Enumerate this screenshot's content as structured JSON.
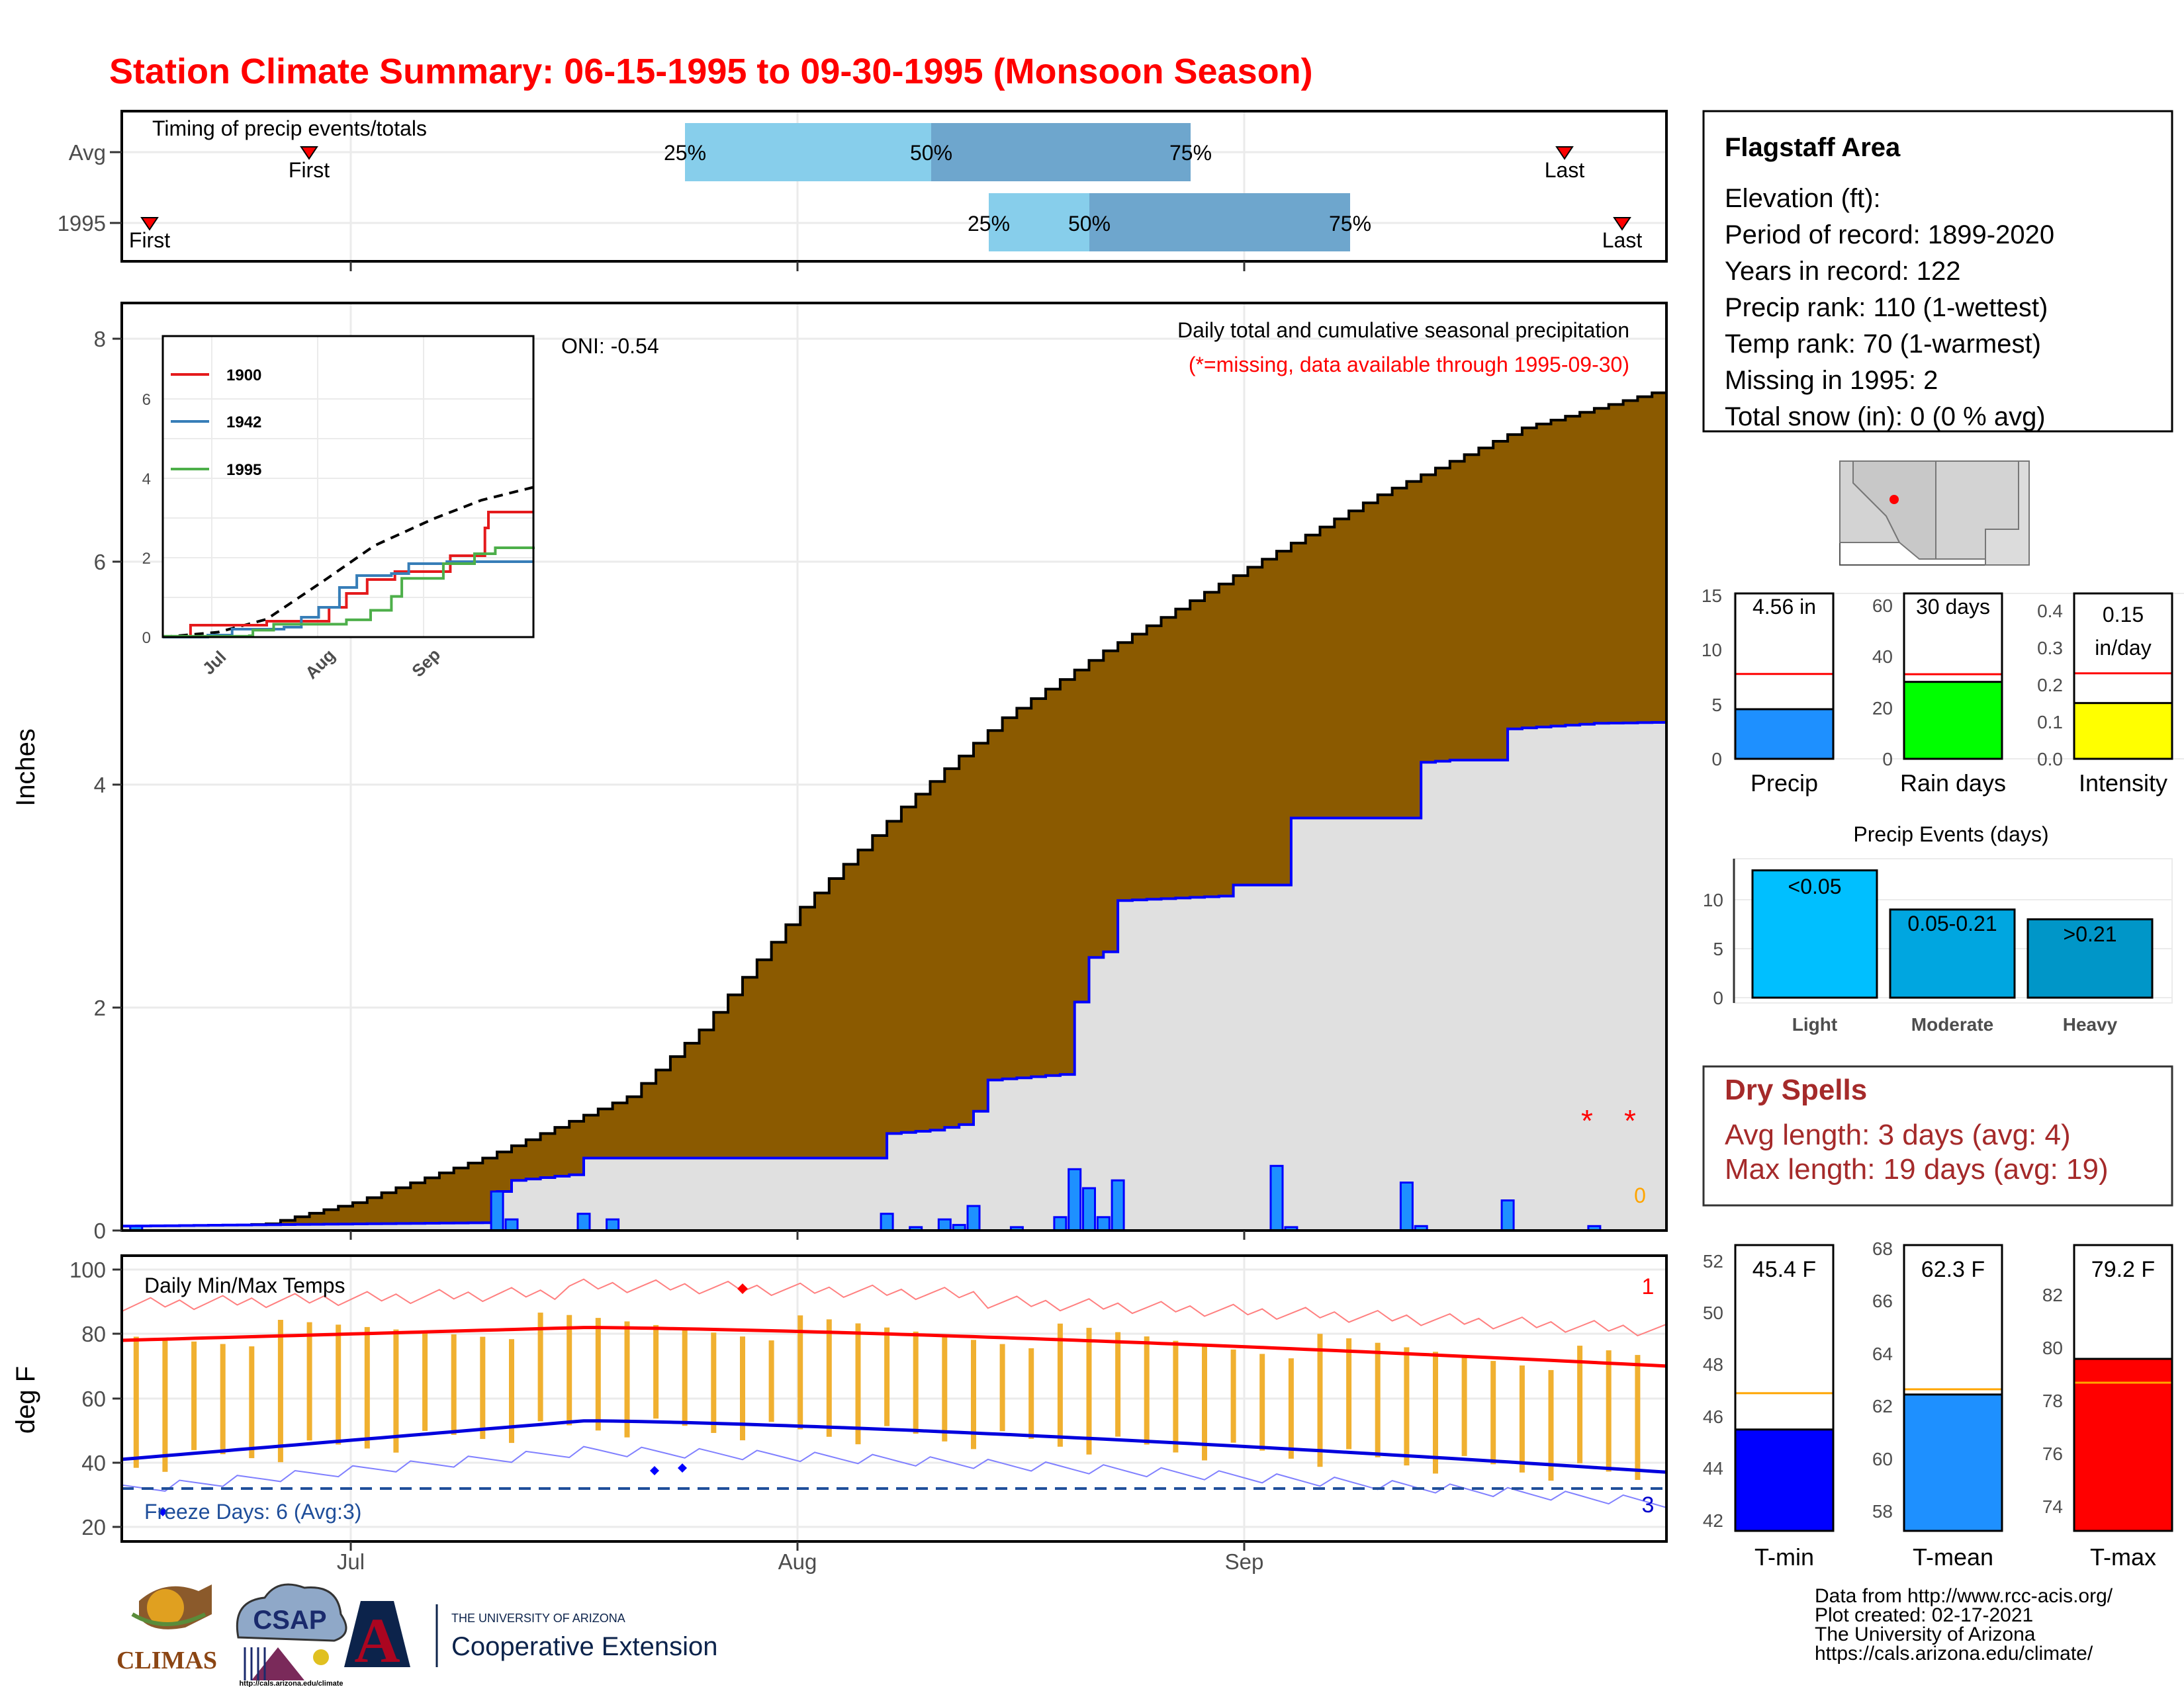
{
  "title": "Station Climate Summary: 06-15-1995 to 09-30-1995 (Monsoon Season)",
  "timing": {
    "title": "Timing of precip events/totals",
    "rows": [
      "Avg",
      "1995"
    ],
    "pct_labels": [
      "25%",
      "50%",
      "75%"
    ],
    "first_label": "First",
    "last_label": "Last"
  },
  "station": {
    "name": "Flagstaff Area",
    "lines": [
      "Elevation (ft):",
      "Period of record: 1899-2020",
      "Years in record: 122",
      "Precip rank: 110 (1-wettest)",
      "Temp rank: 70 (1-warmest)",
      "Missing in 1995: 2",
      "Total snow (in): 0 (0 % avg)"
    ]
  },
  "main_precip": {
    "title": "Daily total and cumulative seasonal precipitation",
    "subtitle": "(*=missing, data available through 1995-09-30)",
    "ylabel": "Inches",
    "oni": "ONI: -0.54",
    "yticks": [
      "0",
      "2",
      "4",
      "6",
      "8"
    ],
    "xticks": [
      "Jul",
      "Aug",
      "Sep"
    ],
    "zero_label": "0",
    "missing_mark": "*"
  },
  "inset": {
    "legend": [
      "1900",
      "1942",
      "1995"
    ],
    "yticks": [
      "0",
      "2",
      "4",
      "6"
    ],
    "xticks": [
      "Jul",
      "Aug",
      "Sep"
    ]
  },
  "temps": {
    "title": "Daily Min/Max Temps",
    "ylabel": "deg F",
    "yticks": [
      "20",
      "40",
      "60",
      "80",
      "100"
    ],
    "xticks": [
      "Jul",
      "Aug",
      "Sep"
    ],
    "freeze_label": "Freeze Days: 6 (Avg:3)",
    "max_count": "1",
    "min_count": "3"
  },
  "mini_precip": {
    "labels": [
      "Precip",
      "Rain days",
      "Intensity"
    ],
    "values_text": [
      "4.56 in",
      "30 days",
      "0.15",
      "in/day"
    ],
    "axis1": [
      "0",
      "5",
      "10",
      "15"
    ],
    "axis2": [
      "0",
      "20",
      "40",
      "60"
    ],
    "axis3": [
      "0.0",
      "0.1",
      "0.2",
      "0.3",
      "0.4"
    ]
  },
  "events": {
    "title": "Precip Events (days)",
    "cats": [
      "Light",
      "Moderate",
      "Heavy"
    ],
    "bar_labels": [
      "<0.05",
      "0.05-0.21",
      ">0.21"
    ],
    "yticks": [
      "0",
      "5",
      "10"
    ]
  },
  "dry": {
    "title": "Dry Spells",
    "avg": "Avg length: 3 days (avg: 4)",
    "max": "Max length: 19 days (avg: 19)"
  },
  "temp_bars": {
    "labels": [
      "T-min",
      "T-mean",
      "T-max"
    ],
    "values_text": [
      "45.4 F",
      "62.3 F",
      "79.2 F"
    ],
    "axis1": [
      "42",
      "44",
      "46",
      "48",
      "50",
      "52"
    ],
    "axis2": [
      "58",
      "60",
      "62",
      "64",
      "66",
      "68"
    ],
    "axis3": [
      "74",
      "76",
      "78",
      "80",
      "82"
    ]
  },
  "logos": {
    "climas": "CLIMAS",
    "csap": "CSAP",
    "csap_url": "http://cals.arizona.edu/climate",
    "ua_small": "THE UNIVERSITY OF ARIZONA",
    "ua_big": "Cooperative Extension",
    "ua_letter": "A"
  },
  "footer": [
    "Data from http://www.rcc-acis.org/",
    "Plot created: 02-17-2021",
    "The University of Arizona",
    "https://cals.arizona.edu/climate/"
  ],
  "colors": {
    "cum_avg_fill": "#8b5a00",
    "cum_obs_fill": "#e0e0e0",
    "cum_obs_line": "#0000ff",
    "daily_bar": "#1e90ff",
    "temp_bar": "#f0b030",
    "tmax_avg": "#ff0000",
    "tmin_avg": "#0000dd",
    "light": "#00bfff",
    "moderate": "#00a6e0",
    "heavy": "#0096c8"
  },
  "chart_data": [
    {
      "type": "timing",
      "rows": [
        {
          "name": "Avg",
          "first": "06-24",
          "q25": "07-20",
          "q50": "08-03",
          "q75": "08-17",
          "last": "09-21"
        },
        {
          "name": "1995",
          "first": "06-16",
          "q25": "08-06",
          "q50": "08-12",
          "q75": "08-27",
          "last": "09-29"
        }
      ]
    },
    {
      "type": "area",
      "title": "Daily total and cumulative seasonal precipitation",
      "ylabel": "Inches",
      "ylim": [
        0,
        8.3
      ],
      "x_range": [
        "06-15",
        "09-30"
      ],
      "avg_cumulative": [
        {
          "date": "06-15",
          "value": 0.0
        },
        {
          "date": "06-25",
          "value": 0.06
        },
        {
          "date": "07-01",
          "value": 0.25
        },
        {
          "date": "07-10",
          "value": 0.65
        },
        {
          "date": "07-20",
          "value": 1.2
        },
        {
          "date": "07-25",
          "value": 1.8
        },
        {
          "date": "08-01",
          "value": 2.9
        },
        {
          "date": "08-08",
          "value": 3.8
        },
        {
          "date": "08-15",
          "value": 4.6
        },
        {
          "date": "08-22",
          "value": 5.2
        },
        {
          "date": "09-01",
          "value": 5.95
        },
        {
          "date": "09-10",
          "value": 6.6
        },
        {
          "date": "09-20",
          "value": 7.2
        },
        {
          "date": "09-30",
          "value": 7.55
        }
      ],
      "obs_cumulative": [
        {
          "date": "06-15",
          "value": 0.04
        },
        {
          "date": "07-10",
          "value": 0.07
        },
        {
          "date": "07-11",
          "value": 0.35
        },
        {
          "date": "07-12",
          "value": 0.45
        },
        {
          "date": "07-16",
          "value": 0.5
        },
        {
          "date": "07-17",
          "value": 0.65
        },
        {
          "date": "08-06",
          "value": 0.65
        },
        {
          "date": "08-07",
          "value": 0.87
        },
        {
          "date": "08-10",
          "value": 0.9
        },
        {
          "date": "08-12",
          "value": 0.95
        },
        {
          "date": "08-13",
          "value": 1.07
        },
        {
          "date": "08-14",
          "value": 1.35
        },
        {
          "date": "08-19",
          "value": 1.4
        },
        {
          "date": "08-20",
          "value": 2.05
        },
        {
          "date": "08-21",
          "value": 2.45
        },
        {
          "date": "08-22",
          "value": 2.5
        },
        {
          "date": "08-23",
          "value": 2.96
        },
        {
          "date": "08-30",
          "value": 3.0
        },
        {
          "date": "08-31",
          "value": 3.1
        },
        {
          "date": "09-03",
          "value": 3.1
        },
        {
          "date": "09-04",
          "value": 3.7
        },
        {
          "date": "09-12",
          "value": 3.7
        },
        {
          "date": "09-13",
          "value": 4.2
        },
        {
          "date": "09-15",
          "value": 4.22
        },
        {
          "date": "09-18",
          "value": 4.22
        },
        {
          "date": "09-19",
          "value": 4.5
        },
        {
          "date": "09-25",
          "value": 4.55
        },
        {
          "date": "09-30",
          "value": 4.56
        }
      ],
      "daily_bars": [
        {
          "date": "06-16",
          "value": 0.04
        },
        {
          "date": "07-11",
          "value": 0.35
        },
        {
          "date": "07-12",
          "value": 0.1
        },
        {
          "date": "07-17",
          "value": 0.15
        },
        {
          "date": "07-19",
          "value": 0.1
        },
        {
          "date": "08-07",
          "value": 0.15
        },
        {
          "date": "08-09",
          "value": 0.03
        },
        {
          "date": "08-11",
          "value": 0.1
        },
        {
          "date": "08-12",
          "value": 0.05
        },
        {
          "date": "08-13",
          "value": 0.22
        },
        {
          "date": "08-16",
          "value": 0.03
        },
        {
          "date": "08-19",
          "value": 0.12
        },
        {
          "date": "08-20",
          "value": 0.55
        },
        {
          "date": "08-21",
          "value": 0.38
        },
        {
          "date": "08-22",
          "value": 0.12
        },
        {
          "date": "08-23",
          "value": 0.45
        },
        {
          "date": "09-03",
          "value": 0.58
        },
        {
          "date": "09-04",
          "value": 0.03
        },
        {
          "date": "09-12",
          "value": 0.43
        },
        {
          "date": "09-13",
          "value": 0.04
        },
        {
          "date": "09-19",
          "value": 0.27
        },
        {
          "date": "09-25",
          "value": 0.04
        }
      ],
      "missing": [
        "09-21",
        "09-26"
      ]
    },
    {
      "type": "line",
      "title": "inset",
      "ylim": [
        0,
        8
      ],
      "series": [
        {
          "name": "1900",
          "points": [
            {
              "date": "06-15",
              "value": 0
            },
            {
              "date": "06-22",
              "value": 0
            },
            {
              "date": "06-23",
              "value": 0.6
            },
            {
              "date": "07-10",
              "value": 0.6
            },
            {
              "date": "07-15",
              "value": 0.8
            },
            {
              "date": "08-01",
              "value": 0.8
            },
            {
              "date": "08-02",
              "value": 1.5
            },
            {
              "date": "08-06",
              "value": 1.5
            },
            {
              "date": "08-07",
              "value": 2.2
            },
            {
              "date": "08-12",
              "value": 2.2
            },
            {
              "date": "08-13",
              "value": 2.9
            },
            {
              "date": "08-20",
              "value": 2.9
            },
            {
              "date": "08-21",
              "value": 3.3
            },
            {
              "date": "09-05",
              "value": 3.3
            },
            {
              "date": "09-06",
              "value": 4.1
            },
            {
              "date": "09-14",
              "value": 4.1
            },
            {
              "date": "09-16",
              "value": 5.5
            },
            {
              "date": "09-17",
              "value": 6.3
            },
            {
              "date": "09-30",
              "value": 6.3
            }
          ]
        },
        {
          "name": "1942",
          "points": [
            {
              "date": "06-15",
              "value": 0
            },
            {
              "date": "06-28",
              "value": 0.1
            },
            {
              "date": "07-05",
              "value": 0.4
            },
            {
              "date": "07-20",
              "value": 0.5
            },
            {
              "date": "07-25",
              "value": 1.0
            },
            {
              "date": "07-30",
              "value": 1.5
            },
            {
              "date": "08-05",
              "value": 2.5
            },
            {
              "date": "08-10",
              "value": 3.1
            },
            {
              "date": "08-20",
              "value": 3.2
            },
            {
              "date": "08-25",
              "value": 3.7
            },
            {
              "date": "09-05",
              "value": 3.8
            },
            {
              "date": "09-30",
              "value": 3.8
            }
          ]
        },
        {
          "name": "1995",
          "points": [
            {
              "date": "06-15",
              "value": 0.04
            },
            {
              "date": "07-10",
              "value": 0.07
            },
            {
              "date": "07-11",
              "value": 0.35
            },
            {
              "date": "07-17",
              "value": 0.65
            },
            {
              "date": "08-06",
              "value": 0.65
            },
            {
              "date": "08-07",
              "value": 0.87
            },
            {
              "date": "08-14",
              "value": 1.35
            },
            {
              "date": "08-20",
              "value": 2.05
            },
            {
              "date": "08-23",
              "value": 2.96
            },
            {
              "date": "09-04",
              "value": 3.7
            },
            {
              "date": "09-13",
              "value": 4.2
            },
            {
              "date": "09-19",
              "value": 4.5
            },
            {
              "date": "09-30",
              "value": 4.56
            }
          ]
        },
        {
          "name": "avg",
          "points": [
            {
              "date": "06-15",
              "value": 0
            },
            {
              "date": "07-01",
              "value": 0.25
            },
            {
              "date": "07-15",
              "value": 0.9
            },
            {
              "date": "08-01",
              "value": 2.9
            },
            {
              "date": "08-15",
              "value": 4.6
            },
            {
              "date": "09-01",
              "value": 5.95
            },
            {
              "date": "09-15",
              "value": 6.9
            },
            {
              "date": "09-30",
              "value": 7.55
            }
          ]
        }
      ]
    },
    {
      "type": "bar",
      "title": "Daily Min/Max Temps",
      "ylabel": "deg F",
      "ylim": [
        17,
        101
      ],
      "tmax_avg_start": 78,
      "tmax_avg_peak": 82,
      "tmax_avg_end": 70,
      "tmin_avg_start": 41,
      "tmin_avg_peak": 53,
      "tmin_avg_end": 37,
      "record_high_marker": {
        "date": "08-04",
        "value": 93
      },
      "record_low_markers": [
        {
          "date": "07-23",
          "value": 38
        },
        {
          "date": "07-25",
          "value": 39
        }
      ],
      "freeze_marker": {
        "date": "06-17",
        "value": 24
      },
      "freeze_line": 32
    },
    {
      "type": "bar",
      "title": "Season totals",
      "categories": [
        "Precip",
        "Rain days",
        "Intensity"
      ],
      "values": [
        4.56,
        30,
        0.15
      ],
      "averages": [
        7.8,
        33,
        0.23
      ]
    },
    {
      "type": "bar",
      "title": "Precip Events (days)",
      "categories": [
        "Light",
        "Moderate",
        "Heavy"
      ],
      "values": [
        13,
        9,
        8
      ],
      "ylim": [
        0,
        14
      ]
    },
    {
      "type": "bar",
      "title": "Season temperatures",
      "categories": [
        "T-min",
        "T-mean",
        "T-max"
      ],
      "values": [
        45.4,
        62.3,
        79.2
      ],
      "averages": [
        46.8,
        62.5,
        78.3
      ]
    }
  ]
}
